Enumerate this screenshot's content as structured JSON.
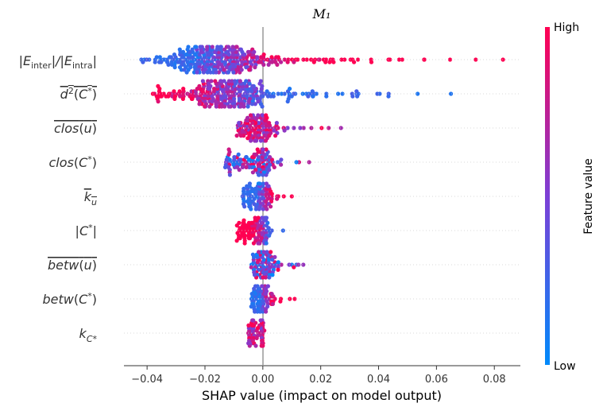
{
  "chart_data": {
    "type": "scatter",
    "title": "M₁",
    "xlabel": "SHAP value (impact on model output)",
    "xlim": [
      -0.048,
      0.089
    ],
    "xticks": [
      "−0.04",
      "−0.02",
      "0.00",
      "0.02",
      "0.04",
      "0.06",
      "0.08"
    ],
    "xtick_values": [
      -0.04,
      -0.02,
      0.0,
      0.02,
      0.04,
      0.06,
      0.08
    ],
    "grid": false,
    "colorbar": {
      "label": "Feature value",
      "high_label": "High",
      "low_label": "Low",
      "low_color": "#008afb",
      "mid_color": "#7c3fd6",
      "high_color": "#ff0052"
    },
    "features": [
      {
        "name": "|E_inter|/|E_intra|",
        "min": -0.042,
        "max": 0.083,
        "peak": -0.016,
        "core_width": 0.007,
        "density": 1.0,
        "color_trend": "pos_high"
      },
      {
        "name": "d²(C*) overline",
        "min": -0.038,
        "max": 0.065,
        "peak": -0.011,
        "core_width": 0.006,
        "density": 0.9,
        "color_trend": "neg_high"
      },
      {
        "name": "clos(u) overline",
        "min": -0.009,
        "max": 0.027,
        "peak": -0.001,
        "core_width": 0.0015,
        "density": 0.55,
        "color_trend": "high"
      },
      {
        "name": "clos(C*)",
        "min": -0.013,
        "max": 0.016,
        "peak": 0.0,
        "core_width": 0.0012,
        "density": 0.45,
        "color_trend": "mixed"
      },
      {
        "name": "k_u overline",
        "min": -0.007,
        "max": 0.01,
        "peak": 0.0,
        "core_width": 0.0015,
        "density": 0.45,
        "color_trend": "pos_high"
      },
      {
        "name": "|C*|",
        "min": -0.009,
        "max": 0.007,
        "peak": 0.0,
        "core_width": 0.0012,
        "density": 0.45,
        "color_trend": "neg_high"
      },
      {
        "name": "betw(u) overline",
        "min": -0.004,
        "max": 0.014,
        "peak": 0.0,
        "core_width": 0.0012,
        "density": 0.45,
        "color_trend": "mixed"
      },
      {
        "name": "betw(C*)",
        "min": -0.004,
        "max": 0.011,
        "peak": 0.0,
        "core_width": 0.0008,
        "density": 0.4,
        "color_trend": "pos_high"
      },
      {
        "name": "k_C*",
        "min": -0.005,
        "max": 0.0005,
        "peak": 0.0,
        "core_width": 0.0002,
        "density": 0.3,
        "color_trend": "high"
      }
    ]
  }
}
